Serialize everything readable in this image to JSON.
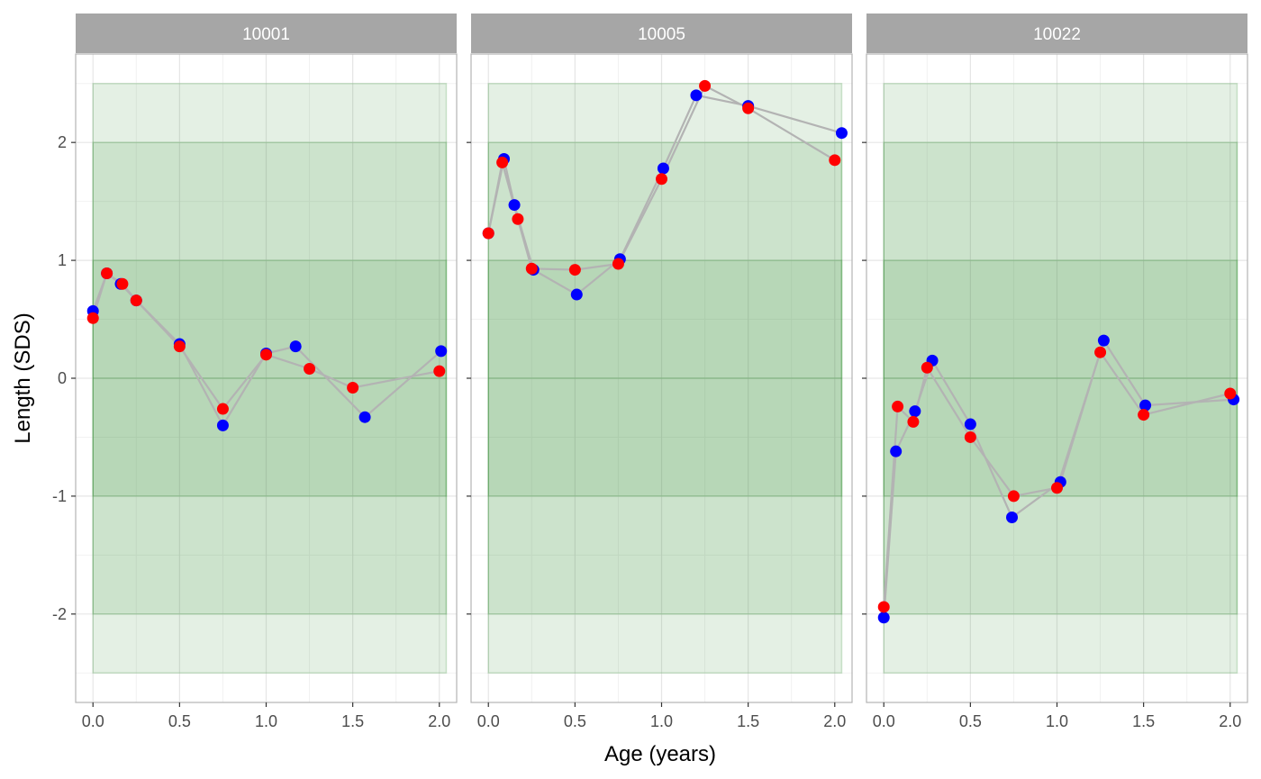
{
  "chart_data": {
    "type": "scatter",
    "xlabel": "Age (years)",
    "ylabel": "Length (SDS)",
    "xlim": [
      -0.1,
      2.1
    ],
    "ylim": [
      -2.75,
      2.75
    ],
    "x_ticks": [
      0,
      0.5,
      1,
      1.5,
      2
    ],
    "x_tick_labels": [
      "0.0",
      "0.5",
      "1.0",
      "1.5",
      "2.0"
    ],
    "y_ticks": [
      -2,
      -1,
      0,
      1,
      2
    ],
    "y_tick_labels": [
      "-2",
      "-1",
      "0",
      "1",
      "2"
    ],
    "grid": true,
    "colors": {
      "series_a": "#0000ff",
      "series_b": "#ff0000",
      "line": "#b3b3b3",
      "band": "#2e8b2e",
      "strip": "#a6a6a6"
    },
    "bands": [
      {
        "y": [
          -2.5,
          2.5
        ],
        "opacity": 0.13
      },
      {
        "y": [
          -2,
          2
        ],
        "opacity": 0.13
      },
      {
        "y": [
          -1,
          1
        ],
        "opacity": 0.13
      }
    ],
    "band_x": [
      0,
      2.04
    ],
    "panels": [
      {
        "label": "10001",
        "series": [
          {
            "color": "blue",
            "x": [
              0,
              0.08,
              0.16,
              0.25,
              0.5,
              0.75,
              1.0,
              1.17,
              1.57,
              2.01
            ],
            "y": [
              0.57,
              0.89,
              0.8,
              0.66,
              0.29,
              -0.4,
              0.21,
              0.27,
              -0.33,
              0.23
            ]
          },
          {
            "color": "red",
            "x": [
              0,
              0.08,
              0.17,
              0.25,
              0.5,
              0.75,
              1.0,
              1.25,
              1.5,
              2.0
            ],
            "y": [
              0.51,
              0.89,
              0.8,
              0.66,
              0.27,
              -0.26,
              0.2,
              0.08,
              -0.08,
              0.06
            ]
          }
        ]
      },
      {
        "label": "10005",
        "series": [
          {
            "color": "blue",
            "x": [
              0,
              0.09,
              0.15,
              0.26,
              0.51,
              0.76,
              1.01,
              1.2,
              1.5,
              2.04
            ],
            "y": [
              1.23,
              1.86,
              1.47,
              0.92,
              0.71,
              1.01,
              1.78,
              2.4,
              2.31,
              2.08
            ]
          },
          {
            "color": "red",
            "x": [
              0,
              0.08,
              0.17,
              0.25,
              0.5,
              0.75,
              1.0,
              1.25,
              1.5,
              2.0
            ],
            "y": [
              1.23,
              1.83,
              1.35,
              0.93,
              0.92,
              0.97,
              1.69,
              2.48,
              2.29,
              1.85
            ]
          }
        ]
      },
      {
        "label": "10022",
        "series": [
          {
            "color": "blue",
            "x": [
              0,
              0.07,
              0.18,
              0.28,
              0.5,
              0.74,
              1.02,
              1.27,
              1.51,
              2.02
            ],
            "y": [
              -2.03,
              -0.62,
              -0.28,
              0.15,
              -0.39,
              -1.18,
              -0.88,
              0.32,
              -0.23,
              -0.18
            ]
          },
          {
            "color": "red",
            "x": [
              0,
              0.08,
              0.17,
              0.25,
              0.5,
              0.75,
              1.0,
              1.25,
              1.5,
              2.0
            ],
            "y": [
              -1.94,
              -0.24,
              -0.37,
              0.09,
              -0.5,
              -1.0,
              -0.93,
              0.22,
              -0.31,
              -0.13
            ]
          }
        ]
      }
    ]
  }
}
